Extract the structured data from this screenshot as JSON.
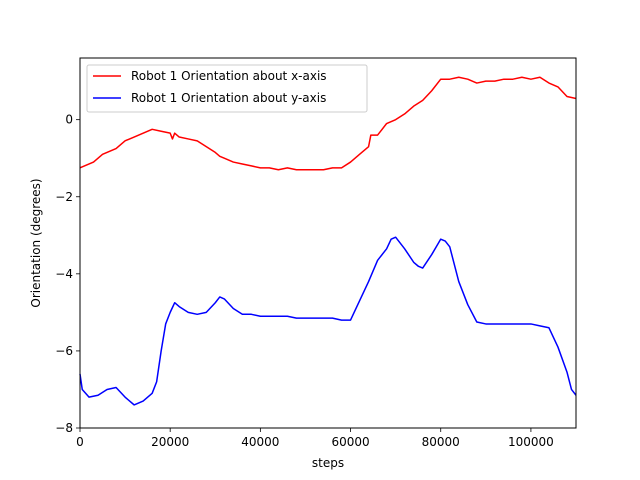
{
  "chart_data": {
    "type": "line",
    "title": "",
    "xlabel": "steps",
    "ylabel": "Orientation (degrees)",
    "xlim": [
      0,
      110000
    ],
    "ylim": [
      -8,
      1.6
    ],
    "x_ticks": [
      0,
      20000,
      40000,
      60000,
      80000,
      100000
    ],
    "y_ticks": [
      -8,
      -6,
      -4,
      -2,
      0
    ],
    "x_tick_labels": [
      "0",
      "20000",
      "40000",
      "60000",
      "80000",
      "100000"
    ],
    "y_tick_labels": [
      "−8",
      "−6",
      "−4",
      "−2",
      "0"
    ],
    "grid": false,
    "legend_position": "upper-left",
    "series": [
      {
        "name": "Robot 1 Orientation about x-axis",
        "color": "#ff0000",
        "x": [
          0,
          3000,
          5000,
          8000,
          10000,
          12000,
          14000,
          16000,
          18000,
          20000,
          20500,
          21000,
          22000,
          24000,
          26000,
          28000,
          30000,
          31000,
          32000,
          34000,
          36000,
          38000,
          40000,
          42000,
          44000,
          46000,
          48000,
          50000,
          52000,
          54000,
          56000,
          58000,
          60000,
          62000,
          64000,
          64500,
          66000,
          68000,
          70000,
          72000,
          74000,
          76000,
          78000,
          80000,
          82000,
          84000,
          86000,
          88000,
          90000,
          92000,
          94000,
          96000,
          98000,
          100000,
          102000,
          104000,
          106000,
          108000,
          110000
        ],
        "y": [
          -1.25,
          -1.1,
          -0.9,
          -0.75,
          -0.55,
          -0.45,
          -0.35,
          -0.25,
          -0.3,
          -0.35,
          -0.5,
          -0.35,
          -0.45,
          -0.5,
          -0.55,
          -0.7,
          -0.85,
          -0.95,
          -1.0,
          -1.1,
          -1.15,
          -1.2,
          -1.25,
          -1.25,
          -1.3,
          -1.25,
          -1.3,
          -1.3,
          -1.3,
          -1.3,
          -1.25,
          -1.25,
          -1.1,
          -0.9,
          -0.7,
          -0.4,
          -0.4,
          -0.1,
          0.0,
          0.15,
          0.35,
          0.5,
          0.75,
          1.05,
          1.05,
          1.1,
          1.05,
          0.95,
          1.0,
          1.0,
          1.05,
          1.05,
          1.1,
          1.05,
          1.1,
          0.95,
          0.85,
          0.6,
          0.55
        ]
      },
      {
        "name": "Robot 1 Orientation about y-axis",
        "color": "#0000ff",
        "x": [
          0,
          500,
          2000,
          4000,
          6000,
          8000,
          10000,
          12000,
          14000,
          16000,
          17000,
          18000,
          19000,
          20000,
          21000,
          22000,
          24000,
          26000,
          28000,
          30000,
          31000,
          32000,
          34000,
          36000,
          38000,
          40000,
          42000,
          44000,
          46000,
          48000,
          50000,
          52000,
          54000,
          56000,
          58000,
          60000,
          62000,
          64000,
          66000,
          68000,
          69000,
          70000,
          72000,
          74000,
          75000,
          76000,
          78000,
          79000,
          80000,
          81000,
          82000,
          84000,
          86000,
          88000,
          90000,
          92000,
          94000,
          96000,
          98000,
          100000,
          102000,
          104000,
          106000,
          108000,
          109000,
          110000
        ],
        "y": [
          -6.6,
          -7.0,
          -7.2,
          -7.15,
          -7.0,
          -6.95,
          -7.2,
          -7.4,
          -7.3,
          -7.1,
          -6.8,
          -6.0,
          -5.3,
          -5.0,
          -4.75,
          -4.85,
          -5.0,
          -5.05,
          -5.0,
          -4.75,
          -4.6,
          -4.65,
          -4.9,
          -5.05,
          -5.05,
          -5.1,
          -5.1,
          -5.1,
          -5.1,
          -5.15,
          -5.15,
          -5.15,
          -5.15,
          -5.15,
          -5.2,
          -5.2,
          -4.7,
          -4.2,
          -3.65,
          -3.35,
          -3.1,
          -3.05,
          -3.35,
          -3.7,
          -3.8,
          -3.85,
          -3.5,
          -3.3,
          -3.1,
          -3.15,
          -3.3,
          -4.2,
          -4.8,
          -5.25,
          -5.3,
          -5.3,
          -5.3,
          -5.3,
          -5.3,
          -5.3,
          -5.35,
          -5.4,
          -5.9,
          -6.55,
          -7.0,
          -7.15
        ]
      }
    ]
  }
}
